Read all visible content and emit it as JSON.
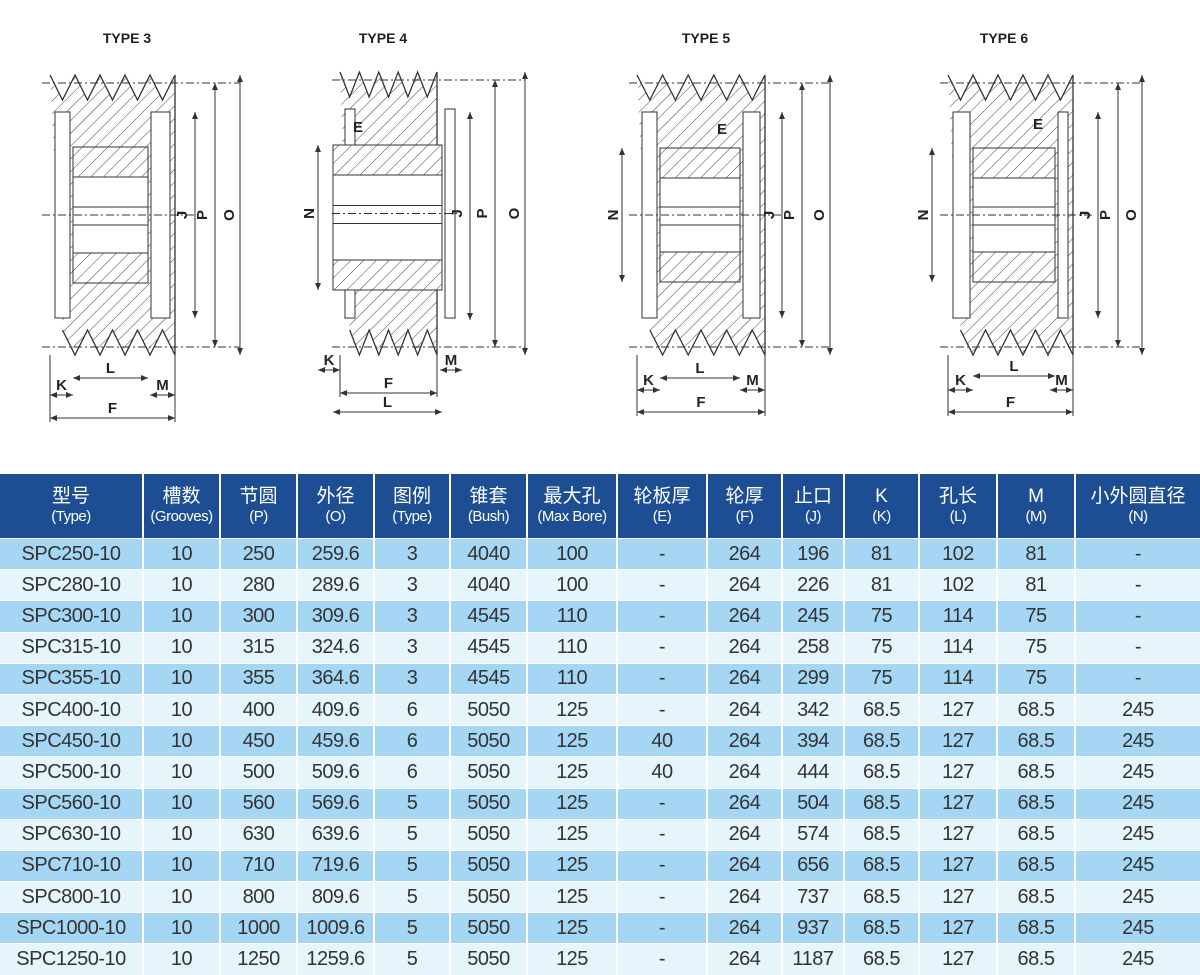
{
  "diagrams": {
    "types": [
      {
        "title": "TYPE 3",
        "labels": {
          "J": "J",
          "P": "P",
          "O": "O",
          "K": "K",
          "L": "L",
          "M": "M",
          "F": "F"
        }
      },
      {
        "title": "TYPE 4",
        "labels": {
          "J": "J",
          "P": "P",
          "O": "O",
          "N": "N",
          "E": "E",
          "K": "K",
          "L": "L",
          "M": "M",
          "F": "F"
        }
      },
      {
        "title": "TYPE 5",
        "labels": {
          "J": "J",
          "P": "P",
          "O": "O",
          "N": "N",
          "E": "E",
          "K": "K",
          "L": "L",
          "M": "M",
          "F": "F"
        }
      },
      {
        "title": "TYPE 6",
        "labels": {
          "J": "J",
          "P": "P",
          "O": "O",
          "N": "N",
          "E": "E",
          "K": "K",
          "L": "L",
          "M": "M",
          "F": "F"
        }
      }
    ]
  },
  "table": {
    "headers": [
      {
        "zh": "型号",
        "en": "(Type)"
      },
      {
        "zh": "槽数",
        "en": "(Grooves)"
      },
      {
        "zh": "节圆",
        "en": "(P)"
      },
      {
        "zh": "外径",
        "en": "(O)"
      },
      {
        "zh": "图例",
        "en": "(Type)"
      },
      {
        "zh": "锥套",
        "en": "(Bush)"
      },
      {
        "zh": "最大孔",
        "en": "(Max Bore)"
      },
      {
        "zh": "轮板厚",
        "en": "(E)"
      },
      {
        "zh": "轮厚",
        "en": "(F)"
      },
      {
        "zh": "止口",
        "en": "(J)"
      },
      {
        "zh": "K",
        "en": "(K)"
      },
      {
        "zh": "孔长",
        "en": "(L)"
      },
      {
        "zh": "M",
        "en": "(M)"
      },
      {
        "zh": "小外圆直径",
        "en": "(N)"
      }
    ],
    "rows": [
      [
        "SPC250-10",
        "10",
        "250",
        "259.6",
        "3",
        "4040",
        "100",
        "-",
        "264",
        "196",
        "81",
        "102",
        "81",
        "-"
      ],
      [
        "SPC280-10",
        "10",
        "280",
        "289.6",
        "3",
        "4040",
        "100",
        "-",
        "264",
        "226",
        "81",
        "102",
        "81",
        "-"
      ],
      [
        "SPC300-10",
        "10",
        "300",
        "309.6",
        "3",
        "4545",
        "110",
        "-",
        "264",
        "245",
        "75",
        "114",
        "75",
        "-"
      ],
      [
        "SPC315-10",
        "10",
        "315",
        "324.6",
        "3",
        "4545",
        "110",
        "-",
        "264",
        "258",
        "75",
        "114",
        "75",
        "-"
      ],
      [
        "SPC355-10",
        "10",
        "355",
        "364.6",
        "3",
        "4545",
        "110",
        "-",
        "264",
        "299",
        "75",
        "114",
        "75",
        "-"
      ],
      [
        "SPC400-10",
        "10",
        "400",
        "409.6",
        "6",
        "5050",
        "125",
        "-",
        "264",
        "342",
        "68.5",
        "127",
        "68.5",
        "245"
      ],
      [
        "SPC450-10",
        "10",
        "450",
        "459.6",
        "6",
        "5050",
        "125",
        "40",
        "264",
        "394",
        "68.5",
        "127",
        "68.5",
        "245"
      ],
      [
        "SPC500-10",
        "10",
        "500",
        "509.6",
        "6",
        "5050",
        "125",
        "40",
        "264",
        "444",
        "68.5",
        "127",
        "68.5",
        "245"
      ],
      [
        "SPC560-10",
        "10",
        "560",
        "569.6",
        "5",
        "5050",
        "125",
        "-",
        "264",
        "504",
        "68.5",
        "127",
        "68.5",
        "245"
      ],
      [
        "SPC630-10",
        "10",
        "630",
        "639.6",
        "5",
        "5050",
        "125",
        "-",
        "264",
        "574",
        "68.5",
        "127",
        "68.5",
        "245"
      ],
      [
        "SPC710-10",
        "10",
        "710",
        "719.6",
        "5",
        "5050",
        "125",
        "-",
        "264",
        "656",
        "68.5",
        "127",
        "68.5",
        "245"
      ],
      [
        "SPC800-10",
        "10",
        "800",
        "809.6",
        "5",
        "5050",
        "125",
        "-",
        "264",
        "737",
        "68.5",
        "127",
        "68.5",
        "245"
      ],
      [
        "SPC1000-10",
        "10",
        "1000",
        "1009.6",
        "5",
        "5050",
        "125",
        "-",
        "264",
        "937",
        "68.5",
        "127",
        "68.5",
        "245"
      ],
      [
        "SPC1250-10",
        "10",
        "1250",
        "1259.6",
        "5",
        "5050",
        "125",
        "-",
        "264",
        "1187",
        "68.5",
        "127",
        "68.5",
        "245"
      ]
    ]
  },
  "colors": {
    "header_bg": "#1d4e94",
    "row_odd": "#a5d7f4",
    "row_even": "#e6f4fc",
    "line": "#333333"
  }
}
